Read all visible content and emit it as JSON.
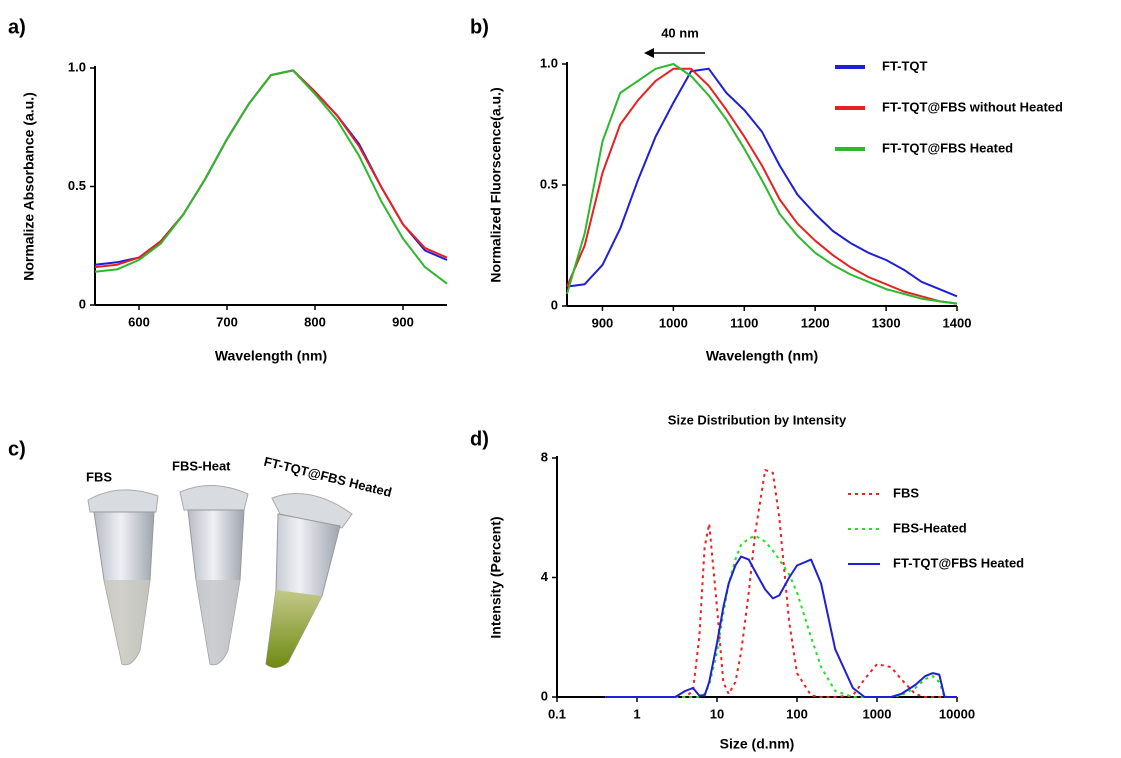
{
  "chart_data": [
    {
      "type": "line",
      "panel": "a)",
      "xlabel": "Wavelength (nm)",
      "ylabel": "Normalize Absorbance (a.u.)",
      "xlim": [
        550,
        950
      ],
      "xticks": [
        600,
        700,
        800,
        900
      ],
      "ylim": [
        0,
        1
      ],
      "yticks": [
        0,
        0.5,
        {
          "value": 1,
          "label": "1.0"
        }
      ],
      "x": [
        550,
        575,
        600,
        625,
        650,
        675,
        700,
        725,
        750,
        775,
        800,
        825,
        850,
        875,
        900,
        925,
        950
      ],
      "series": [
        {
          "color": "#1f1fd6",
          "values": [
            0.17,
            0.18,
            0.2,
            0.27,
            0.38,
            0.53,
            0.7,
            0.85,
            0.97,
            0.99,
            0.9,
            0.8,
            0.68,
            0.5,
            0.34,
            0.23,
            0.19
          ]
        },
        {
          "color": "#e82020",
          "values": [
            0.16,
            0.17,
            0.2,
            0.27,
            0.38,
            0.53,
            0.7,
            0.85,
            0.97,
            0.99,
            0.9,
            0.8,
            0.67,
            0.5,
            0.34,
            0.24,
            0.2
          ]
        },
        {
          "color": "#2db82d",
          "values": [
            0.14,
            0.15,
            0.19,
            0.26,
            0.38,
            0.53,
            0.7,
            0.85,
            0.97,
            0.99,
            0.89,
            0.78,
            0.63,
            0.44,
            0.28,
            0.16,
            0.09
          ]
        }
      ]
    },
    {
      "type": "line",
      "panel": "b)",
      "xlabel": "Wavelength (nm)",
      "ylabel": "Normalized Fluorscence(a.u.)",
      "annotation": "40 nm",
      "xlim": [
        850,
        1400
      ],
      "xticks": [
        900,
        1000,
        1100,
        1200,
        1300,
        1400
      ],
      "ylim": [
        0,
        1
      ],
      "yticks": [
        0,
        0.5,
        {
          "value": 1,
          "label": "1.0"
        }
      ],
      "legend": "upper right",
      "x": [
        850,
        875,
        900,
        925,
        950,
        975,
        1000,
        1025,
        1050,
        1075,
        1100,
        1125,
        1150,
        1175,
        1200,
        1225,
        1250,
        1275,
        1300,
        1325,
        1350,
        1375,
        1400
      ],
      "series": [
        {
          "name": "FT-TQT",
          "color": "#1f1fd6",
          "values": [
            0.08,
            0.09,
            0.17,
            0.32,
            0.52,
            0.7,
            0.84,
            0.97,
            0.98,
            0.88,
            0.81,
            0.72,
            0.58,
            0.46,
            0.38,
            0.31,
            0.26,
            0.22,
            0.19,
            0.15,
            0.1,
            0.07,
            0.04
          ]
        },
        {
          "name": "FT-TQT@FBS without Heated",
          "color": "#e82020",
          "values": [
            0.08,
            0.25,
            0.55,
            0.75,
            0.85,
            0.93,
            0.98,
            0.98,
            0.91,
            0.81,
            0.7,
            0.58,
            0.44,
            0.34,
            0.27,
            0.21,
            0.16,
            0.12,
            0.09,
            0.06,
            0.04,
            0.02,
            0.01
          ]
        },
        {
          "name": "FT-TQT@FBS Heated",
          "color": "#2db82d",
          "values": [
            0.05,
            0.3,
            0.68,
            0.88,
            0.93,
            0.98,
            1.0,
            0.95,
            0.87,
            0.77,
            0.65,
            0.52,
            0.38,
            0.29,
            0.22,
            0.17,
            0.13,
            0.1,
            0.07,
            0.05,
            0.03,
            0.02,
            0.01
          ]
        }
      ]
    },
    {
      "type": "line",
      "panel": "d)",
      "title": "Size Distribution by Intensity",
      "xlabel": "Size (d.nm)",
      "ylabel": "Intensity (Percent)",
      "xscale": "log",
      "xlim": [
        0.1,
        10000
      ],
      "xticks": [
        0.1,
        1,
        10,
        100,
        1000,
        10000
      ],
      "ylim": [
        0,
        8
      ],
      "yticks": [
        0,
        4,
        8
      ],
      "legend": "upper right",
      "x": [
        0.4,
        1,
        2,
        3,
        4,
        5,
        6,
        7,
        8,
        10,
        12,
        14,
        17,
        20,
        25,
        30,
        40,
        50,
        60,
        80,
        100,
        150,
        200,
        300,
        500,
        700,
        1000,
        1500,
        2000,
        3000,
        4000,
        5000,
        6000,
        7000,
        10000
      ],
      "series": [
        {
          "name": "FBS",
          "color": "#f02020",
          "dash": "dotted",
          "values": [
            0,
            0,
            0,
            0,
            0,
            0.2,
            2.0,
            5.0,
            5.8,
            3.0,
            0.5,
            0.1,
            0.5,
            1.5,
            3.5,
            5.5,
            7.6,
            7.5,
            6.0,
            2.5,
            0.8,
            0.05,
            0,
            0,
            0.05,
            0.6,
            1.1,
            1.0,
            0.6,
            0.1,
            0,
            0,
            0,
            0,
            0
          ]
        },
        {
          "name": "FBS-Heated",
          "color": "#22e022",
          "dash": "dotted",
          "values": [
            0,
            0,
            0,
            0,
            0,
            0,
            0,
            0.1,
            0.4,
            1.5,
            2.8,
            3.8,
            4.6,
            5.1,
            5.3,
            5.4,
            5.2,
            4.9,
            4.6,
            4.1,
            3.5,
            2.0,
            1.0,
            0.2,
            0,
            0,
            0,
            0,
            0.05,
            0.3,
            0.6,
            0.7,
            0.5,
            0,
            0
          ]
        },
        {
          "name": "FT-TQT@FBS Heated",
          "color": "#1f1fd6",
          "dash": "solid",
          "values": [
            0,
            0,
            0,
            0,
            0.2,
            0.3,
            0.05,
            0.05,
            0.5,
            1.8,
            3.0,
            3.8,
            4.4,
            4.7,
            4.6,
            4.2,
            3.6,
            3.3,
            3.4,
            4.0,
            4.4,
            4.6,
            3.8,
            1.6,
            0.3,
            0,
            0,
            0,
            0.1,
            0.4,
            0.7,
            0.8,
            0.75,
            0,
            0
          ]
        }
      ]
    }
  ],
  "photo": {
    "panel": "c)",
    "labels": [
      "FBS",
      "FBS-Heat",
      "FT-TQT@FBS Heated"
    ]
  }
}
